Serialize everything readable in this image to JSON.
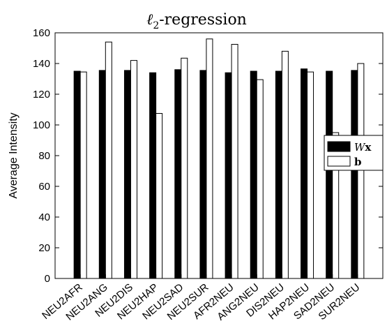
{
  "chart_data": {
    "type": "bar",
    "title": "ℓ2-regression",
    "title_main": "ℓ",
    "title_sub": "2",
    "title_rest": "-regression",
    "xlabel": "",
    "ylabel": "Average Intensity",
    "ylim": [
      0,
      160
    ],
    "yticks": [
      "0",
      "20",
      "40",
      "60",
      "80",
      "100",
      "120",
      "140",
      "160"
    ],
    "categories": [
      "NEU2AFR",
      "NEU2ANG",
      "NEU2DIS",
      "NEU2HAP",
      "NEU2SAD",
      "NEU2SUR",
      "AFR2NEU",
      "ANG2NEU",
      "DIS2NEU",
      "HAP2NEU",
      "SAD2NEU",
      "SUR2NEU"
    ],
    "series": [
      {
        "name": "Wx",
        "color": "#000000",
        "values": [
          135,
          135.5,
          135.5,
          134,
          136,
          135.5,
          134,
          135,
          135,
          136.5,
          135,
          135.5
        ]
      },
      {
        "name": "b",
        "color": "#ffffff",
        "values": [
          134.5,
          154,
          142,
          107.5,
          143.5,
          156,
          152.5,
          129.5,
          148,
          134.5,
          95,
          140
        ]
      }
    ],
    "legend": {
      "position": "right",
      "entries": [
        {
          "label_main": "W",
          "label_rest": "x"
        },
        {
          "label_main": "b",
          "label_rest": ""
        }
      ]
    },
    "grid": false
  }
}
